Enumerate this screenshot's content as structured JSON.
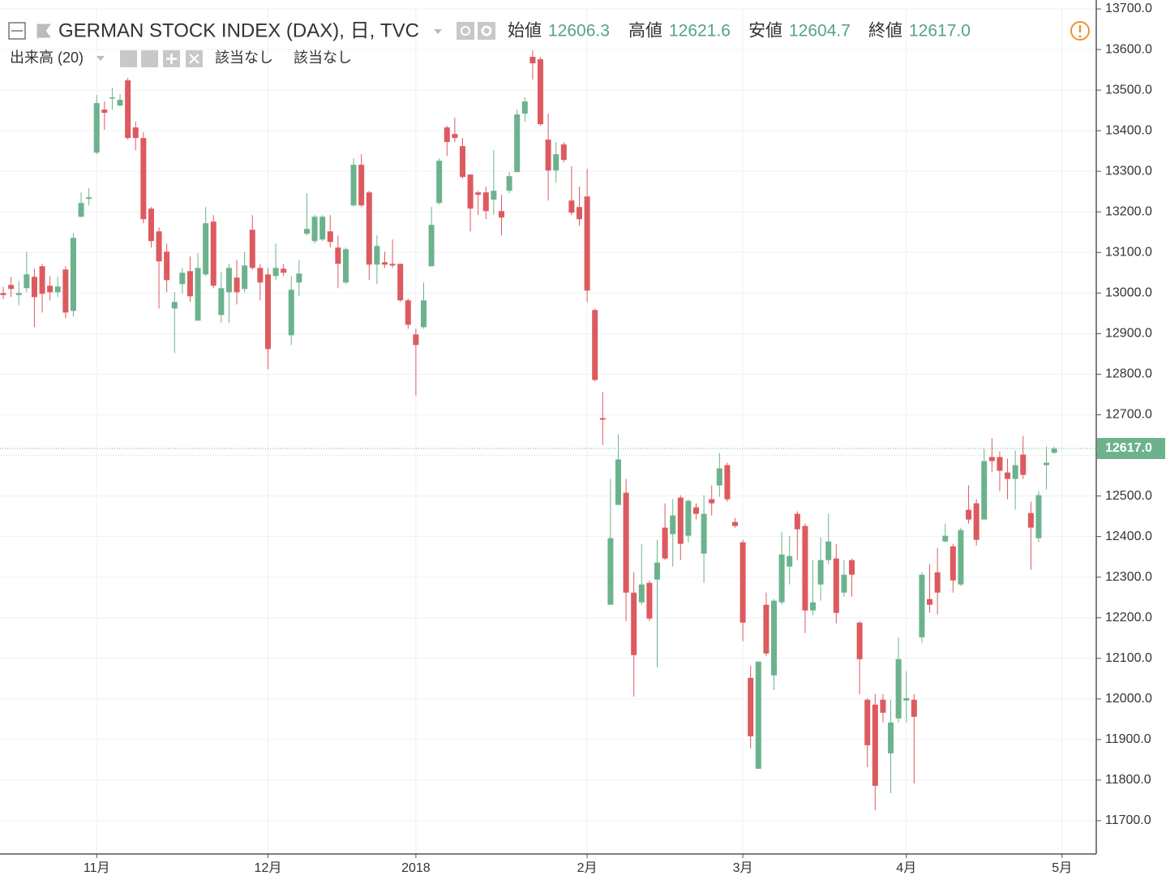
{
  "chart_data": {
    "type": "candlestick",
    "title": "GERMAN STOCK INDEX (DAX), 日, TVC",
    "ohlc_legend": [
      {
        "label": "始値",
        "value": "12606.3"
      },
      {
        "label": "高値",
        "value": "12621.6"
      },
      {
        "label": "安値",
        "value": "12604.7"
      },
      {
        "label": "終値",
        "value": "12617.0"
      }
    ],
    "indicator": {
      "name": "出来高 (20)",
      "values": [
        "該当なし",
        "該当なし"
      ]
    },
    "up_color": "#6cb38d",
    "down_color": "#dd5a5f",
    "grid": true,
    "ylim": [
      11620,
      13706
    ],
    "yticks": [
      {
        "value": 11700,
        "label": "11700.0"
      },
      {
        "value": 11800,
        "label": "11800.0"
      },
      {
        "value": 11900,
        "label": "11900.0"
      },
      {
        "value": 12000,
        "label": "12000.0"
      },
      {
        "value": 12100,
        "label": "12100.0"
      },
      {
        "value": 12200,
        "label": "12200.0"
      },
      {
        "value": 12300,
        "label": "12300.0"
      },
      {
        "value": 12400,
        "label": "12400.0"
      },
      {
        "value": 12500,
        "label": "12500.0"
      },
      {
        "value": 12600,
        "label": "12600.0"
      },
      {
        "value": 12700,
        "label": "12700.0"
      },
      {
        "value": 12800,
        "label": "12800.0"
      },
      {
        "value": 12900,
        "label": "12900.0"
      },
      {
        "value": 13000,
        "label": "13000.0"
      },
      {
        "value": 13100,
        "label": "13100.0"
      },
      {
        "value": 13200,
        "label": "13200.0"
      },
      {
        "value": 13300,
        "label": "13300.0"
      },
      {
        "value": 13400,
        "label": "13400.0"
      },
      {
        "value": 13500,
        "label": "13500.0"
      },
      {
        "value": 13600,
        "label": "13600.0"
      },
      {
        "value": 13700,
        "label": "13700.0"
      }
    ],
    "xlim": [
      -0.42,
      140.4
    ],
    "xticks": [
      {
        "value": 12,
        "label": "11月"
      },
      {
        "value": 34,
        "label": "12月"
      },
      {
        "value": 53,
        "label": "2018"
      },
      {
        "value": 75,
        "label": "2月"
      },
      {
        "value": 95,
        "label": "3月"
      },
      {
        "value": 116,
        "label": "4月"
      },
      {
        "value": 136,
        "label": "5月"
      }
    ],
    "last_price": {
      "value": 12617,
      "label": "12617.0"
    },
    "open": [
      13000,
      13020,
      12995,
      13012,
      13040,
      13066,
      13018,
      13002,
      13058,
      12956,
      13188,
      13232,
      13346,
      13452,
      13480,
      13462,
      13524,
      13408,
      13382,
      13208,
      13152,
      13102,
      12962,
      13022,
      13054,
      12932,
      13046,
      13176,
      12946,
      13002,
      13038,
      13010,
      13156,
      13062,
      13046,
      13042,
      13060,
      12896,
      13026,
      13146,
      13128,
      13132,
      13152,
      13112,
      13026,
      13216,
      13316,
      13248,
      13070,
      13076,
      13072,
      13072,
      12982,
      12898,
      12916,
      13066,
      13222,
      13408,
      13392,
      13362,
      13292,
      13248,
      13248,
      13230,
      13202,
      13252,
      13298,
      13442,
      13582,
      13576,
      13378,
      13302,
      13366,
      13228,
      13212,
      13238,
      12958,
      12692,
      12232,
      12478,
      12508,
      12262,
      12238,
      12286,
      12294,
      12422,
      12406,
      12496,
      12402,
      12472,
      12358,
      12492,
      12526,
      12576,
      12436,
      12386,
      12052,
      11828,
      12232,
      12058,
      12238,
      12326,
      12456,
      12426,
      12218,
      12282,
      12342,
      12346,
      12262,
      12342,
      12188,
      11998,
      11986,
      11998,
      11866,
      11952,
      11996,
      11998,
      12152,
      12246,
      12312,
      12388,
      12376,
      12282,
      12466,
      12482,
      12442,
      12596,
      12596,
      12558,
      12542,
      12602,
      12458,
      12396,
      12576,
      12606.3
    ],
    "high": [
      13015,
      13040,
      13030,
      13102,
      13060,
      13072,
      13042,
      13040,
      13066,
      13148,
      13248,
      13258,
      13488,
      13472,
      13506,
      13490,
      13530,
      13422,
      13396,
      13212,
      13162,
      13122,
      13002,
      13062,
      13090,
      13098,
      13212,
      13192,
      13052,
      13072,
      13082,
      13102,
      13192,
      13072,
      13062,
      13122,
      13072,
      13042,
      13082,
      13246,
      13192,
      13192,
      13192,
      13142,
      13112,
      13332,
      13342,
      13252,
      13142,
      13102,
      13132,
      13072,
      12986,
      12912,
      13026,
      13212,
      13332,
      13412,
      13432,
      13382,
      13292,
      13252,
      13262,
      13352,
      13242,
      13298,
      13452,
      13482,
      13598,
      13582,
      13442,
      13372,
      13372,
      13312,
      13262,
      13306,
      12962,
      12756,
      12542,
      12652,
      12542,
      12312,
      12382,
      12292,
      12392,
      12482,
      12492,
      12502,
      12492,
      12482,
      12502,
      12526,
      12606,
      12582,
      12446,
      12392,
      12082,
      12092,
      12262,
      12246,
      12412,
      12402,
      12462,
      12432,
      12342,
      12398,
      12456,
      12382,
      12342,
      12346,
      12192,
      12002,
      12012,
      12012,
      11998,
      12152,
      12068,
      12012,
      12312,
      12332,
      12372,
      12432,
      12382,
      12422,
      12526,
      12492,
      12616,
      12642,
      12610,
      12592,
      12612,
      12648,
      12486,
      12512,
      12622,
      12621.6
    ],
    "low": [
      12985,
      12990,
      12970,
      13002,
      12916,
      12952,
      12982,
      12990,
      12938,
      12942,
      13186,
      13216,
      13342,
      13402,
      13452,
      13460,
      13378,
      13352,
      13172,
      13112,
      12962,
      13002,
      12852,
      12998,
      12978,
      12932,
      13042,
      13012,
      12926,
      12926,
      12972,
      13002,
      13058,
      12982,
      12812,
      13032,
      13042,
      12872,
      12992,
      13142,
      13122,
      13128,
      13112,
      13012,
      13022,
      13212,
      13212,
      13032,
      13022,
      13062,
      13062,
      12978,
      12912,
      12748,
      12912,
      13066,
      13218,
      13338,
      13372,
      13282,
      13152,
      13192,
      13182,
      13192,
      13142,
      13246,
      13298,
      13422,
      13526,
      13412,
      13228,
      13272,
      13322,
      13192,
      13166,
      12978,
      12782,
      12626,
      12232,
      12478,
      12192,
      12006,
      12232,
      12192,
      12078,
      12342,
      12326,
      12342,
      12386,
      12442,
      12286,
      12452,
      12498,
      12486,
      12422,
      12142,
      11878,
      11828,
      12106,
      12022,
      12232,
      12282,
      12342,
      12162,
      12206,
      12242,
      12332,
      12186,
      12252,
      12252,
      12012,
      11832,
      11726,
      11942,
      11768,
      11942,
      11942,
      11792,
      12138,
      12212,
      12208,
      12386,
      12262,
      12278,
      12432,
      12378,
      12442,
      12558,
      12512,
      12492,
      12466,
      12542,
      12318,
      12386,
      12516,
      12604.7
    ],
    "close": [
      12995,
      13010,
      13000,
      13046,
      12990,
      12998,
      13002,
      13016,
      12952,
      13136,
      13222,
      13236,
      13468,
      13444,
      13482,
      13476,
      13382,
      13382,
      13182,
      13128,
      13078,
      13032,
      12978,
      13050,
      12992,
      13062,
      13172,
      13018,
      13012,
      13062,
      13002,
      13068,
      13062,
      13026,
      12862,
      13062,
      13050,
      13008,
      13048,
      13158,
      13188,
      13188,
      13126,
      13072,
      13108,
      13316,
      13216,
      13070,
      13116,
      13070,
      13068,
      12982,
      12922,
      12872,
      12982,
      13168,
      13326,
      13372,
      13382,
      13286,
      13208,
      13242,
      13202,
      13252,
      13186,
      13288,
      13440,
      13472,
      13566,
      13416,
      13302,
      13342,
      13328,
      13198,
      13182,
      13006,
      12786,
      12688,
      12396,
      12590,
      12262,
      12108,
      12282,
      12198,
      12336,
      12346,
      12452,
      12382,
      12488,
      12456,
      12456,
      12482,
      12568,
      12492,
      12426,
      12188,
      11908,
      12092,
      12112,
      12242,
      12356,
      12352,
      12418,
      12218,
      12238,
      12342,
      12388,
      12212,
      12306,
      12306,
      12098,
      11886,
      11786,
      11966,
      11942,
      12098,
      12002,
      11956,
      12306,
      12232,
      12262,
      12402,
      12292,
      12416,
      12442,
      12392,
      12586,
      12586,
      12562,
      12542,
      12576,
      12552,
      12422,
      12502,
      12582,
      12617
    ]
  }
}
